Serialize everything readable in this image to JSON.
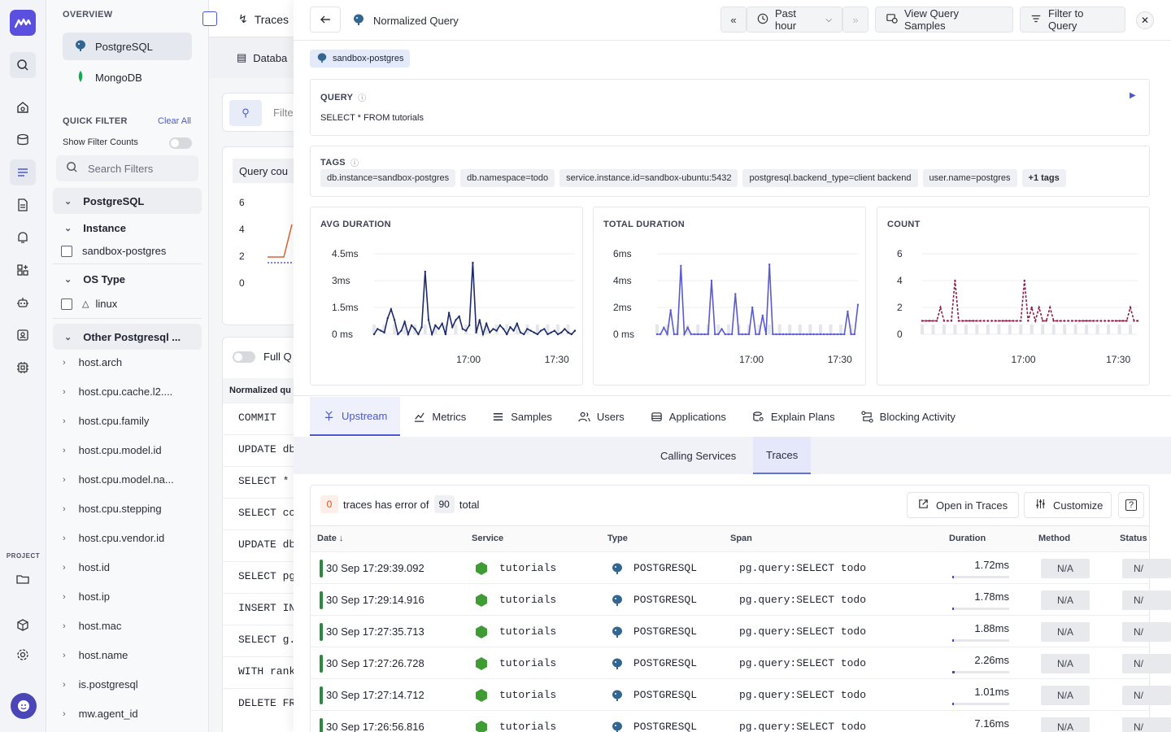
{
  "sidebar": {
    "overview_label": "OVERVIEW",
    "databases": [
      {
        "label": "PostgreSQL",
        "active": true
      },
      {
        "label": "MongoDB",
        "active": false
      }
    ],
    "quick_filter": {
      "title": "QUICK FILTER",
      "clear_all": "Clear All",
      "show_counts_label": "Show Filter Counts",
      "search_placeholder": "Search Filters"
    },
    "groups": {
      "postgresql": "PostgreSQL",
      "instance": "Instance",
      "instance_value": "sandbox-postgres",
      "os_type": "OS Type",
      "os_value": "linux",
      "other": "Other Postgresql ..."
    },
    "attributes": [
      "host.arch",
      "host.cpu.cache.l2....",
      "host.cpu.family",
      "host.cpu.model.id",
      "host.cpu.model.na...",
      "host.cpu.stepping",
      "host.cpu.vendor.id",
      "host.id",
      "host.ip",
      "host.mac",
      "host.name",
      "is.postgresql",
      "mw.agent_id"
    ],
    "project_label": "PROJECT"
  },
  "background": {
    "traces_tab": "Traces",
    "database_tab": "Databa",
    "filter_placeholder": "Filte",
    "query_count_title": "Query cou",
    "yticks": [
      "6",
      "4",
      "2",
      "0"
    ],
    "full_query_label": "Full Q",
    "normalized_query_header": "Normalized qu",
    "queries": [
      "COMMIT",
      "UPDATE db",
      "SELECT *",
      "SELECT co",
      "UPDATE db",
      "SELECT pg",
      "INSERT IN",
      "SELECT g.",
      "WITH rank",
      "DELETE FR"
    ]
  },
  "drawer": {
    "title": "Normalized Query",
    "time_range": "Past hour",
    "view_samples": "View Query Samples",
    "filter_to_query": "Filter to Query",
    "source_tag": "sandbox-postgres",
    "query_label": "QUERY",
    "query_text": "SELECT * FROM tutorials",
    "tags_label": "TAGS",
    "tags": [
      "db.instance=sandbox-postgres",
      "db.namespace=todo",
      "service.instance.id=sandbox-ubuntu:5432",
      "postgresql.backend_type=client backend",
      "user.name=postgres",
      "+1 tags"
    ],
    "tabs": [
      {
        "label": "Upstream",
        "icon": "upstream-icon",
        "active": true
      },
      {
        "label": "Metrics",
        "icon": "metrics-icon",
        "active": false
      },
      {
        "label": "Samples",
        "icon": "samples-icon",
        "active": false
      },
      {
        "label": "Users",
        "icon": "users-icon",
        "active": false
      },
      {
        "label": "Applications",
        "icon": "applications-icon",
        "active": false
      },
      {
        "label": "Explain Plans",
        "icon": "explain-plans-icon",
        "active": false
      },
      {
        "label": "Blocking Activity",
        "icon": "blocking-activity-icon",
        "active": false
      }
    ],
    "subtabs": [
      {
        "label": "Calling Services",
        "active": false
      },
      {
        "label": "Traces",
        "active": true
      }
    ],
    "traces": {
      "error_count": "0",
      "error_text": "traces has error of",
      "total_count": "90",
      "total_text": "total",
      "open_in_traces": "Open in Traces",
      "customize": "Customize",
      "columns": [
        "Date",
        "Service",
        "Type",
        "Span",
        "Duration",
        "Method",
        "Status"
      ],
      "rows": [
        {
          "date": "30 Sep 17:29:39.092",
          "service": "tutorials",
          "type": "POSTGRESQL",
          "span": "pg.query:SELECT todo",
          "duration": "1.72ms",
          "dur_frac": 0.03,
          "method": "N/A",
          "status": "N/"
        },
        {
          "date": "30 Sep 17:29:14.916",
          "service": "tutorials",
          "type": "POSTGRESQL",
          "span": "pg.query:SELECT todo",
          "duration": "1.78ms",
          "dur_frac": 0.03,
          "method": "N/A",
          "status": "N/"
        },
        {
          "date": "30 Sep 17:27:35.713",
          "service": "tutorials",
          "type": "POSTGRESQL",
          "span": "pg.query:SELECT todo",
          "duration": "1.88ms",
          "dur_frac": 0.03,
          "method": "N/A",
          "status": "N/"
        },
        {
          "date": "30 Sep 17:27:26.728",
          "service": "tutorials",
          "type": "POSTGRESQL",
          "span": "pg.query:SELECT todo",
          "duration": "2.26ms",
          "dur_frac": 0.04,
          "method": "N/A",
          "status": "N/"
        },
        {
          "date": "30 Sep 17:27:14.712",
          "service": "tutorials",
          "type": "POSTGRESQL",
          "span": "pg.query:SELECT todo",
          "duration": "1.01ms",
          "dur_frac": 0.02,
          "method": "N/A",
          "status": "N/"
        },
        {
          "date": "30 Sep 17:26:56.816",
          "service": "tutorials",
          "type": "POSTGRESQL",
          "span": "pg.query:SELECT todo",
          "duration": "7.16ms",
          "dur_frac": 0.1,
          "method": "N/A",
          "status": "N/"
        }
      ]
    }
  },
  "colors": {
    "accent": "#4a58d8",
    "avg": "#1d2a6b",
    "total": "#5a5ad0",
    "count": "#8b1d4a",
    "service": "#3f9c35",
    "error_bg": "#fdeee9",
    "error_fg": "#d9531e"
  },
  "chart_data": [
    {
      "type": "line",
      "title": "AVG DURATION",
      "yticks": [
        "4.5ms",
        "3ms",
        "1.5ms",
        "0 ms"
      ],
      "ylim": [
        0,
        4.5
      ],
      "xticks": [
        "17:00",
        "17:30"
      ],
      "x": [
        0,
        1,
        2,
        3,
        4,
        5,
        6,
        7,
        8,
        9,
        10,
        11,
        12,
        13,
        14,
        15,
        16,
        17,
        18,
        19,
        20,
        21,
        22,
        23,
        24,
        25,
        26,
        27,
        28,
        29,
        30,
        31,
        32,
        33,
        34,
        35,
        36,
        37,
        38,
        39,
        40,
        41,
        42,
        43,
        44,
        45,
        46,
        47,
        48,
        49,
        50,
        51,
        52,
        53,
        54,
        55,
        56,
        57,
        58,
        59
      ],
      "values": [
        0,
        0.3,
        0.2,
        0.1,
        0.9,
        1.4,
        0.8,
        0,
        0.2,
        0.7,
        0,
        0.5,
        0.3,
        0,
        0.4,
        3.5,
        0.8,
        0,
        0.5,
        0.3,
        0.6,
        0,
        1.2,
        0.4,
        0.8,
        1.0,
        0.3,
        0.2,
        0.5,
        4.0,
        0.1,
        0.8,
        0,
        0.6,
        0.1,
        0.3,
        0.2,
        0.5,
        0.3,
        0,
        0.4,
        0.2,
        0.6,
        0.1,
        0,
        0.3,
        0.2,
        0.1,
        0,
        0.2,
        0.3,
        0,
        0.1,
        0.2,
        0,
        0.1,
        0.3,
        0.1,
        0,
        0.2
      ],
      "color": "#1d2a6b"
    },
    {
      "type": "line",
      "title": "TOTAL DURATION",
      "yticks": [
        "6ms",
        "4ms",
        "2ms",
        "0 ms"
      ],
      "ylim": [
        0,
        6
      ],
      "xticks": [
        "17:00",
        "17:30"
      ],
      "x": [
        0,
        1,
        2,
        3,
        4,
        5,
        6,
        7,
        8,
        9,
        10,
        11,
        12,
        13,
        14,
        15,
        16,
        17,
        18,
        19,
        20,
        21,
        22,
        23,
        24,
        25,
        26,
        27,
        28,
        29,
        30,
        31,
        32,
        33,
        34,
        35,
        36,
        37,
        38,
        39,
        40,
        41,
        42,
        43,
        44,
        45,
        46,
        47,
        48,
        49,
        50,
        51,
        52,
        53,
        54,
        55,
        56,
        57,
        58,
        59
      ],
      "values": [
        0,
        0,
        0.5,
        0,
        1.8,
        0,
        0,
        5.1,
        0,
        0.5,
        0,
        0,
        0,
        0,
        0,
        0,
        4.0,
        0,
        0,
        0.4,
        0,
        0,
        0,
        3.0,
        0,
        0,
        0,
        0,
        2.0,
        0,
        0,
        1.4,
        0,
        5.2,
        0,
        0,
        0,
        0,
        0,
        0,
        0,
        0,
        0,
        0,
        0,
        0,
        0,
        0,
        0,
        0,
        0,
        0,
        0,
        0,
        0,
        0,
        1.7,
        0,
        0,
        2.2
      ],
      "color": "#5a5ad0"
    },
    {
      "type": "line",
      "title": "COUNT",
      "yticks": [
        "6",
        "4",
        "2",
        "0"
      ],
      "ylim": [
        0,
        6
      ],
      "xticks": [
        "17:00",
        "17:30"
      ],
      "x": [
        0,
        1,
        2,
        3,
        4,
        5,
        6,
        7,
        8,
        9,
        10,
        11,
        12,
        13,
        14,
        15,
        16,
        17,
        18,
        19,
        20,
        21,
        22,
        23,
        24,
        25,
        26,
        27,
        28,
        29,
        30,
        31,
        32,
        33,
        34,
        35,
        36,
        37,
        38,
        39,
        40,
        41,
        42,
        43,
        44,
        45,
        46,
        47,
        48,
        49,
        50,
        51,
        52,
        53,
        54,
        55,
        56,
        57,
        58,
        59
      ],
      "values": [
        1,
        1,
        1,
        1,
        1,
        2,
        1,
        1,
        1,
        4,
        1,
        1,
        1,
        1,
        1,
        1,
        1,
        1,
        1,
        1,
        1,
        1,
        1,
        1,
        1,
        1,
        1,
        1,
        4,
        1,
        2,
        1,
        2,
        1,
        1,
        2,
        1,
        1,
        1,
        1,
        1,
        1,
        1,
        1,
        1,
        1,
        1,
        1,
        1,
        1,
        1,
        1,
        1,
        1,
        1,
        1,
        1,
        2,
        1,
        1
      ],
      "color": "#8b1d4a"
    }
  ]
}
